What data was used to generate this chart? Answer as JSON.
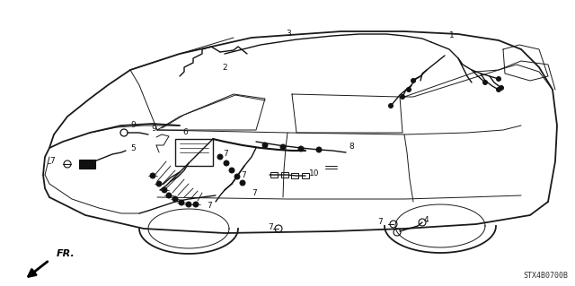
{
  "background_color": "#ffffff",
  "part_code": "STX4B0700B",
  "direction_label": "FR.",
  "fig_width": 6.4,
  "fig_height": 3.19,
  "dpi": 100,
  "car_color": "#1a1a1a",
  "wire_color": "#111111",
  "label_color": "#111111",
  "label_fontsize": 6.5,
  "part_code_fontsize": 5.5,
  "direction_fontsize": 7
}
